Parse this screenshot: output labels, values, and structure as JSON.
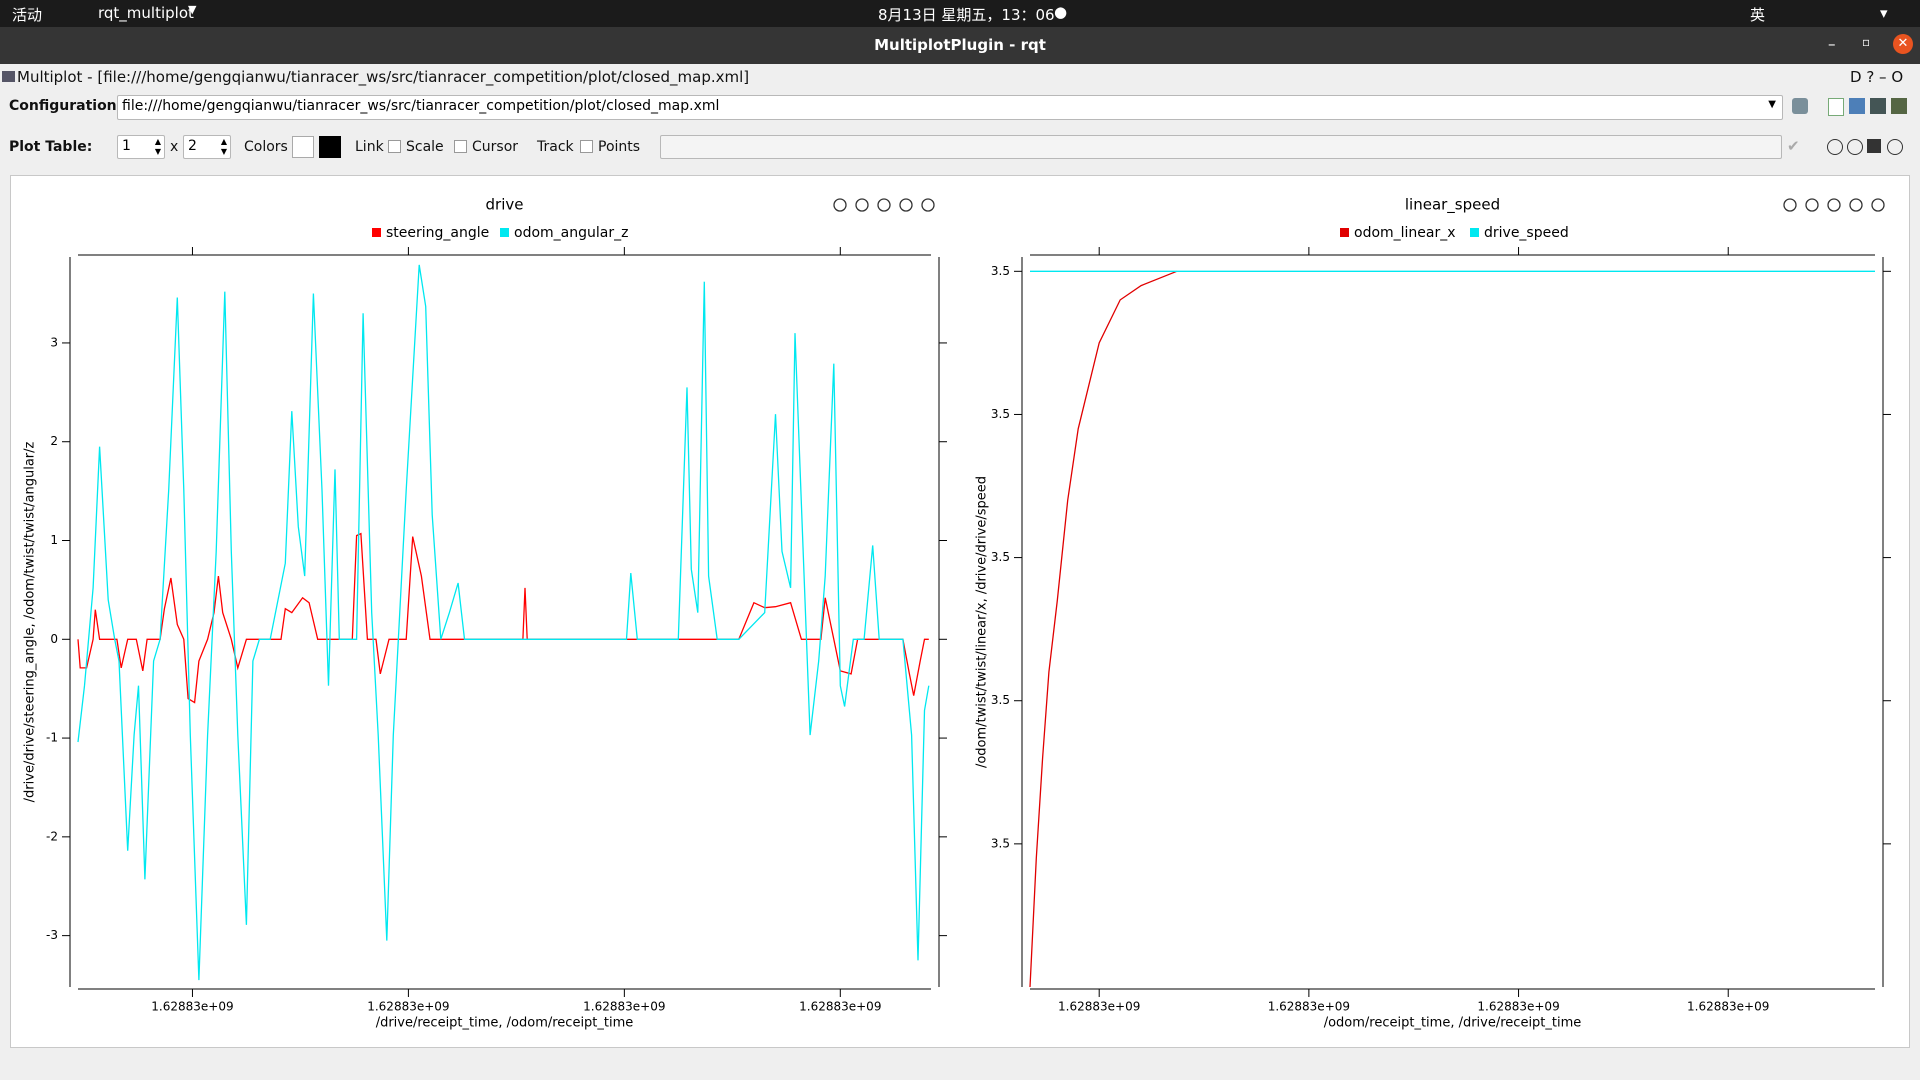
{
  "topbar": {
    "activities": "活动",
    "app": "rqt_multiplot",
    "clock": "8月13日 星期五，13：06",
    "ime": "英"
  },
  "window": {
    "title": "MultiplotPlugin - rqt"
  },
  "plugin": {
    "title": "Multiplot - [file:///home/gengqianwu/tianracer_ws/src/tianracer_competition/plot/closed_map.xml]",
    "configuration_label": "Configuration:",
    "configuration_value": "file:///home/gengqianwu/tianracer_ws/src/tianracer_competition/plot/closed_map.xml",
    "plot_table_label": "Plot Table:",
    "rows": 1,
    "times": "x",
    "columns": 2,
    "colors": "Colors",
    "link": "Link",
    "scale": "Scale",
    "cursor": "Cursor",
    "track": "Track",
    "points": "Points"
  },
  "plots": [
    {
      "type": "line",
      "title": "drive",
      "xlabel": "/drive/receipt_time, /odom/receipt_time",
      "ylabel": "/drive/drive/steering_angle, /odom/twist/twist/angular/z",
      "xlim": [
        1628830047,
        1628830442
      ],
      "ylim": [
        -3.52,
        3.87
      ],
      "xticks": [
        {
          "value": 1628830100,
          "label": "1.62883e+09"
        },
        {
          "value": 1628830200,
          "label": "1.62883e+09"
        },
        {
          "value": 1628830300,
          "label": "1.62883e+09"
        },
        {
          "value": 1628830400,
          "label": "1.62883e+09"
        }
      ],
      "yticks": [
        -3,
        -2,
        -1,
        0,
        1,
        2,
        3
      ],
      "series": [
        {
          "name": "steering_angle",
          "color": "#ff0000",
          "x": [
            1628830047,
            1628830048,
            1628830051,
            1628830054,
            1628830055,
            1628830057,
            1628830065,
            1628830067,
            1628830070,
            1628830074,
            1628830077,
            1628830079,
            1628830085,
            1628830087,
            1628830090,
            1628830093,
            1628830096,
            1628830098,
            1628830101,
            1628830103,
            1628830107,
            1628830110,
            1628830112,
            1628830114,
            1628830118,
            1628830121,
            1628830125,
            1628830141,
            1628830143,
            1628830146,
            1628830151,
            1628830154,
            1628830158,
            1628830174,
            1628830176,
            1628830178,
            1628830181,
            1628830185,
            1628830187,
            1628830191,
            1628830199,
            1628830202,
            1628830206,
            1628830210,
            1628830223,
            1628830253,
            1628830254,
            1628830255,
            1628830353,
            1628830360,
            1628830365,
            1628830370,
            1628830377,
            1628830382,
            1628830391,
            1628830393,
            1628830397,
            1628830400,
            1628830405,
            1628830408,
            1628830429,
            1628830432,
            1628830434,
            1628830437,
            1628830439,
            1628830441
          ],
          "values": [
            0,
            -0.29,
            -0.29,
            0,
            0.3,
            0,
            0,
            -0.29,
            0,
            0,
            -0.32,
            0,
            0,
            0.31,
            0.62,
            0.15,
            0,
            -0.6,
            -0.64,
            -0.22,
            0,
            0.27,
            0.64,
            0.27,
            0,
            -0.29,
            0,
            0,
            0.31,
            0.27,
            0.42,
            0.37,
            0,
            0,
            1.05,
            1.07,
            0,
            0,
            -0.35,
            0,
            0,
            1.04,
            0.64,
            0,
            0,
            0,
            0.52,
            0,
            0,
            0.37,
            0.32,
            0.33,
            0.37,
            0,
            0,
            0.42,
            0,
            -0.32,
            -0.35,
            0,
            0,
            -0.35,
            -0.57,
            -0.22,
            0,
            0
          ]
        },
        {
          "name": "odom_angular_z",
          "color": "#00e8f0",
          "x": [
            1628830047,
            1628830050,
            1628830054,
            1628830057,
            1628830061,
            1628830064,
            1628830066,
            1628830070,
            1628830073,
            1628830075,
            1628830078,
            1628830082,
            1628830085,
            1628830089,
            1628830093,
            1628830096,
            1628830099,
            1628830103,
            1628830107,
            1628830111,
            1628830115,
            1628830118,
            1628830121,
            1628830125,
            1628830128,
            1628830131,
            1628830136,
            1628830143,
            1628830146,
            1628830149,
            1628830152,
            1628830156,
            1628830160,
            1628830163,
            1628830166,
            1628830168,
            1628830176,
            1628830179,
            1628830183,
            1628830186,
            1628830190,
            1628830193,
            1628830199,
            1628830205,
            1628830208,
            1628830211,
            1628830215,
            1628830219,
            1628830223,
            1628830226,
            1628830239,
            1628830296,
            1628830301,
            1628830303,
            1628830306,
            1628830319,
            1628830325,
            1628830329,
            1628830331,
            1628830334,
            1628830337,
            1628830339,
            1628830343,
            1628830353,
            1628830365,
            1628830370,
            1628830373,
            1628830377,
            1628830379,
            1628830383,
            1628830386,
            1628830390,
            1628830393,
            1628830397,
            1628830400,
            1628830402,
            1628830406,
            1628830411,
            1628830415,
            1628830418,
            1628830429,
            1628830433,
            1628830436,
            1628830439,
            1628830441
          ],
          "values": [
            -1.04,
            -0.47,
            0.52,
            1.95,
            0.4,
            0,
            -0.22,
            -2.14,
            -0.97,
            -0.47,
            -2.43,
            -0.22,
            0,
            1.51,
            3.46,
            1.51,
            -0.97,
            -3.45,
            -0.97,
            0.89,
            3.52,
            0.89,
            -0.97,
            -2.89,
            -0.22,
            0,
            0,
            0.77,
            2.31,
            1.14,
            0.64,
            3.5,
            1.51,
            -0.47,
            1.72,
            0,
            0,
            3.3,
            0.27,
            -0.97,
            -3.05,
            -0.97,
            1.51,
            3.79,
            3.37,
            1.26,
            0,
            0.27,
            0.57,
            0,
            0,
            0,
            0,
            0.67,
            0,
            0,
            0,
            2.55,
            0.71,
            0.27,
            3.62,
            0.64,
            0,
            0,
            0.27,
            2.28,
            0.89,
            0.52,
            3.1,
            0.77,
            -0.97,
            -0.22,
            0.64,
            2.79,
            -0.47,
            -0.68,
            0,
            0,
            0.95,
            0,
            0,
            -0.97,
            -3.25,
            -0.72,
            -0.47
          ]
        }
      ]
    },
    {
      "type": "line",
      "title": "linear_speed",
      "xlabel": "/odom/receipt_time, /drive/receipt_time",
      "ylabel": "/odom/twist/twist/linear/x, /drive/drive/speed",
      "xlim": [
        1628830067,
        1628830470
      ],
      "ylim": [
        3.49997,
        3.500021
      ],
      "xticks": [
        {
          "value": 1628830100,
          "label": "1.62883e+09"
        },
        {
          "value": 1628830200,
          "label": "1.62883e+09"
        },
        {
          "value": 1628830300,
          "label": "1.62883e+09"
        },
        {
          "value": 1628830400,
          "label": "1.62883e+09"
        }
      ],
      "yticks": [
        {
          "value": 3.49998,
          "label": "3.5"
        },
        {
          "value": 3.49999,
          "label": "3.5"
        },
        3.5,
        {
          "value": 3.50001,
          "label": "3.5"
        },
        {
          "value": 3.50002,
          "label": "3.5"
        }
      ],
      "series": [
        {
          "name": "odom_linear_x",
          "color": "#e00000",
          "x": [
            1628830067,
            1628830070,
            1628830073,
            1628830076,
            1628830080,
            1628830085,
            1628830090,
            1628830095,
            1628830100,
            1628830110,
            1628830120,
            1628830137
          ],
          "values": [
            3.49997,
            3.499979,
            3.499986,
            3.499992,
            3.499997,
            3.500004,
            3.500009,
            3.500012,
            3.500015,
            3.500018,
            3.500019,
            3.50002
          ]
        },
        {
          "name": "drive_speed",
          "color": "#00e8f0",
          "x": [
            1628830067,
            1628830470
          ],
          "values": [
            3.50002,
            3.50002
          ]
        }
      ]
    }
  ]
}
